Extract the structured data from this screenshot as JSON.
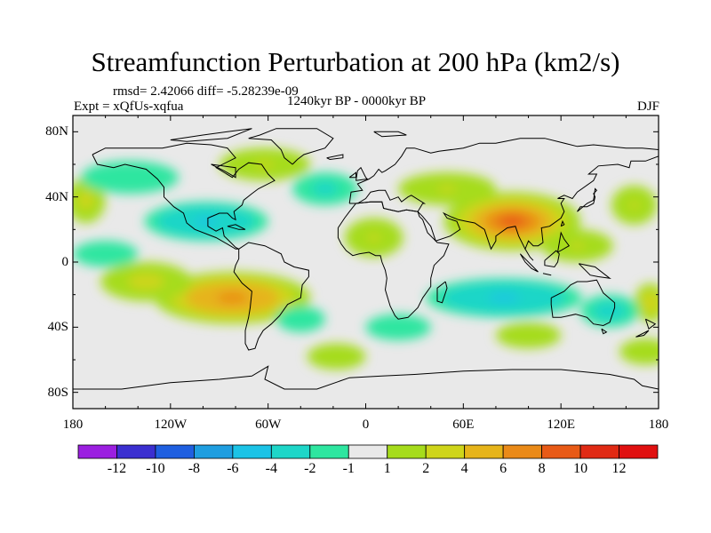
{
  "header": {
    "title": "Streamfunction Perturbation at 200 hPa (km2/s)",
    "stats": "rmsd= 2.42066 diff= -5.28239e-09",
    "experiment": "Expt = xQfUs-xqfua",
    "period": "1240kyr BP - 0000kyr BP",
    "season": "DJF"
  },
  "colors": {
    "background_map": "#e9e9e9",
    "coastline": "#000000",
    "frame": "#000000"
  },
  "chart_data": {
    "type": "heatmap",
    "title": "Streamfunction Perturbation at 200 hPa (km2/s)",
    "units": "km2/s",
    "projection": "cylindrical equidistant",
    "x_axis": {
      "range": [
        -180,
        180
      ],
      "ticks": [
        -180,
        -120,
        -60,
        0,
        60,
        120,
        180
      ],
      "tick_labels": [
        "180",
        "120W",
        "60W",
        "0",
        "60E",
        "120E",
        "180"
      ]
    },
    "y_axis": {
      "range": [
        -90,
        90
      ],
      "ticks": [
        80,
        40,
        0,
        -40,
        -80
      ],
      "tick_labels": [
        "80N",
        "40N",
        "0",
        "40S",
        "80S"
      ]
    },
    "colorbar": {
      "levels": [
        -12,
        -10,
        -8,
        -6,
        -4,
        -2,
        -1,
        1,
        2,
        4,
        6,
        8,
        10,
        12
      ],
      "labels": [
        "-12",
        "-10",
        "-8",
        "-6",
        "-4",
        "-2",
        "-1",
        "1",
        "2",
        "4",
        "6",
        "8",
        "10",
        "12"
      ],
      "colors": [
        "#9b1fe0",
        "#3b2fd0",
        "#1f5fe0",
        "#1f9ee0",
        "#1bc3e6",
        "#1ed6c8",
        "#2ee6a0",
        "#e9e9e9",
        "#a6dc1c",
        "#cfd51a",
        "#e6b41a",
        "#ea8a18",
        "#e85a16",
        "#e02a14",
        "#e01010"
      ]
    },
    "anomalies": [
      {
        "lon": 90,
        "lat": 25,
        "value": 9.5,
        "lon_radius": 42,
        "lat_radius": 18
      },
      {
        "lon": -82,
        "lat": -22,
        "value": 7.0,
        "lon_radius": 48,
        "lat_radius": 16
      },
      {
        "lon": -135,
        "lat": -12,
        "value": 2.5,
        "lon_radius": 28,
        "lat_radius": 12
      },
      {
        "lon": 50,
        "lat": 45,
        "value": 2.0,
        "lon_radius": 30,
        "lat_radius": 10
      },
      {
        "lon": -62,
        "lat": 60,
        "value": 2.2,
        "lon_radius": 28,
        "lat_radius": 10
      },
      {
        "lon": 130,
        "lat": 10,
        "value": 2.0,
        "lon_radius": 22,
        "lat_radius": 10
      },
      {
        "lon": 5,
        "lat": 15,
        "value": 2.0,
        "lon_radius": 18,
        "lat_radius": 12
      },
      {
        "lon": -18,
        "lat": -58,
        "value": 1.8,
        "lon_radius": 18,
        "lat_radius": 8
      },
      {
        "lon": 100,
        "lat": -45,
        "value": 1.8,
        "lon_radius": 20,
        "lat_radius": 8
      },
      {
        "lon": -172,
        "lat": 38,
        "value": 2.5,
        "lon_radius": 12,
        "lat_radius": 14
      },
      {
        "lon": 165,
        "lat": 35,
        "value": 2.2,
        "lon_radius": 14,
        "lat_radius": 12
      },
      {
        "lon": 172,
        "lat": -55,
        "value": 1.8,
        "lon_radius": 16,
        "lat_radius": 8
      },
      {
        "lon": 175,
        "lat": -25,
        "value": 3.0,
        "lon_radius": 10,
        "lat_radius": 12
      },
      {
        "lon": -98,
        "lat": 25,
        "value": -4.5,
        "lon_radius": 38,
        "lat_radius": 12
      },
      {
        "lon": -25,
        "lat": 45,
        "value": -2.5,
        "lon_radius": 20,
        "lat_radius": 10
      },
      {
        "lon": 85,
        "lat": -22,
        "value": -4.5,
        "lon_radius": 48,
        "lat_radius": 12
      },
      {
        "lon": -145,
        "lat": 52,
        "value": -2.0,
        "lon_radius": 30,
        "lat_radius": 10
      },
      {
        "lon": 150,
        "lat": -30,
        "value": -3.0,
        "lon_radius": 18,
        "lat_radius": 10
      },
      {
        "lon": -160,
        "lat": 5,
        "value": -1.5,
        "lon_radius": 20,
        "lat_radius": 8
      },
      {
        "lon": -40,
        "lat": -35,
        "value": -1.5,
        "lon_radius": 15,
        "lat_radius": 8
      },
      {
        "lon": 20,
        "lat": -40,
        "value": -1.5,
        "lon_radius": 20,
        "lat_radius": 8
      }
    ]
  }
}
